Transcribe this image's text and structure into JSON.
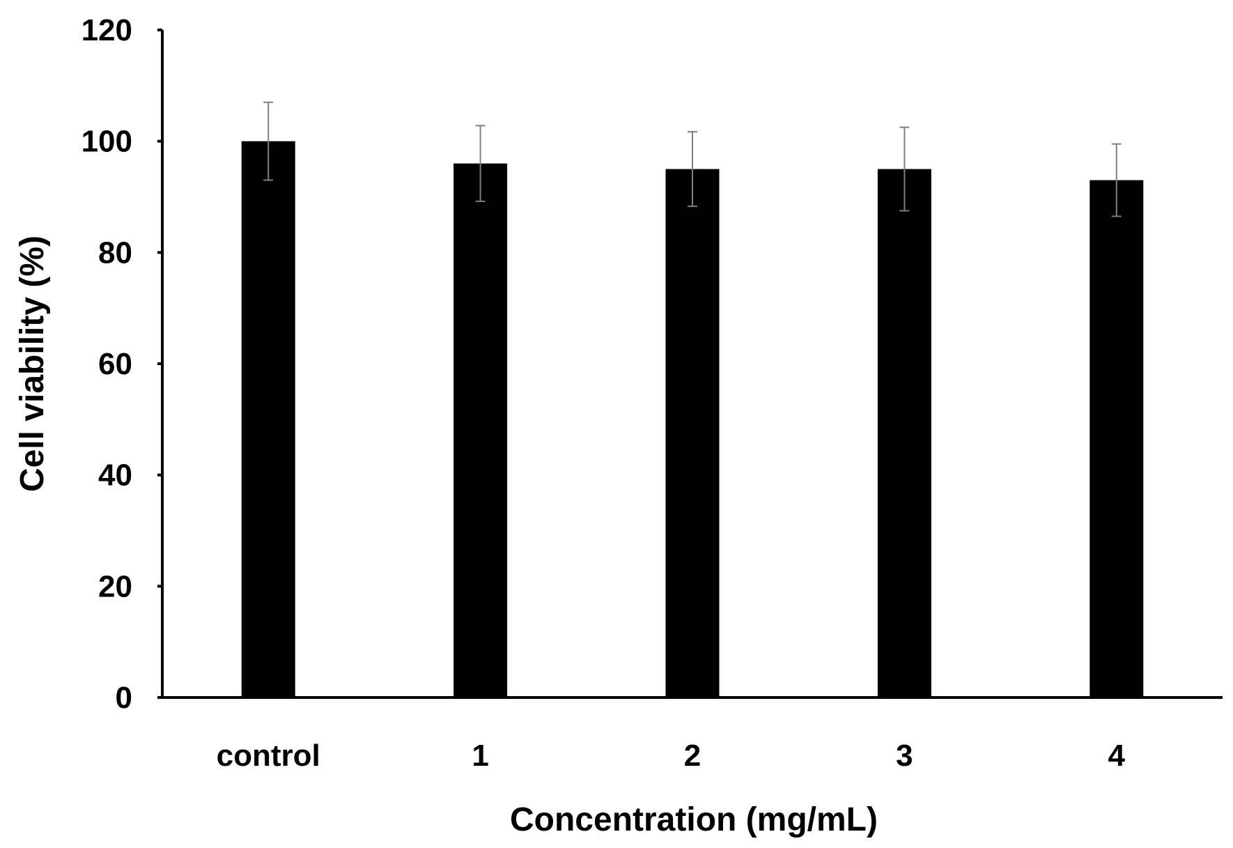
{
  "chart_data": {
    "type": "bar",
    "title": "",
    "xlabel": "Concentration (mg/mL)",
    "ylabel": "Cell viability (%)",
    "categories": [
      "control",
      "1",
      "2",
      "3",
      "4"
    ],
    "values": [
      100,
      96,
      95,
      95,
      93
    ],
    "errors": [
      7,
      6.8,
      6.7,
      7.5,
      6.5
    ],
    "ylim": [
      0,
      120
    ],
    "yticks": [
      "0",
      "20",
      "40",
      "60",
      "80",
      "100",
      "120"
    ],
    "grid": false,
    "legend": "none",
    "bar_color": "#000000",
    "error_bar_color": "#7f7f7f"
  }
}
